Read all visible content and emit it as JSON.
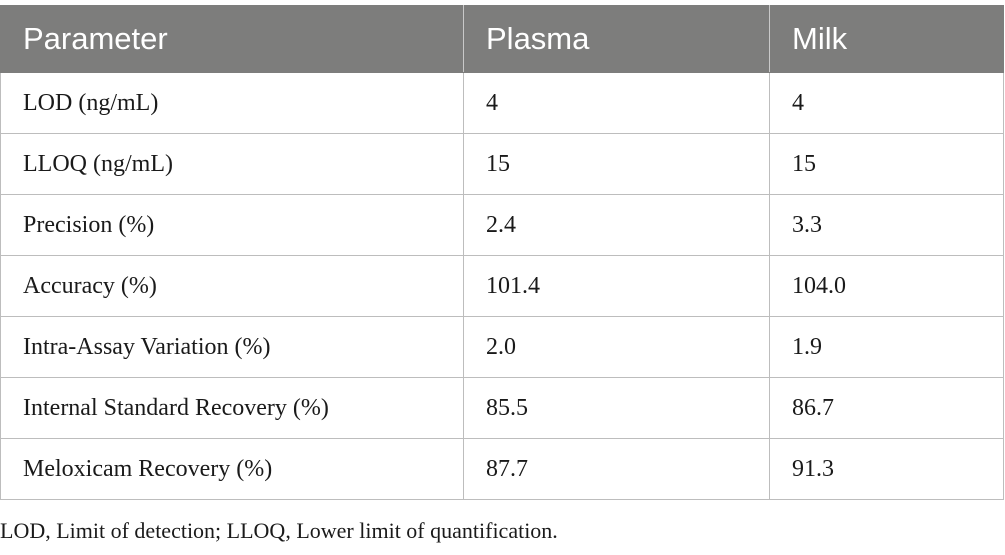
{
  "table": {
    "headers": [
      "Parameter",
      "Plasma",
      "Milk"
    ],
    "rows": [
      [
        "LOD (ng/mL)",
        "4",
        "4"
      ],
      [
        "LLOQ (ng/mL)",
        "15",
        "15"
      ],
      [
        "Precision (%)",
        "2.4",
        "3.3"
      ],
      [
        "Accuracy (%)",
        "101.4",
        "104.0"
      ],
      [
        "Intra-Assay Variation (%)",
        "2.0",
        "1.9"
      ],
      [
        "Internal Standard Recovery (%)",
        "85.5",
        "86.7"
      ],
      [
        "Meloxicam Recovery (%)",
        "87.7",
        "91.3"
      ]
    ],
    "header_color": "#7d7d7c"
  },
  "footnote": "LOD, Limit of detection; LLOQ, Lower limit of quantification."
}
